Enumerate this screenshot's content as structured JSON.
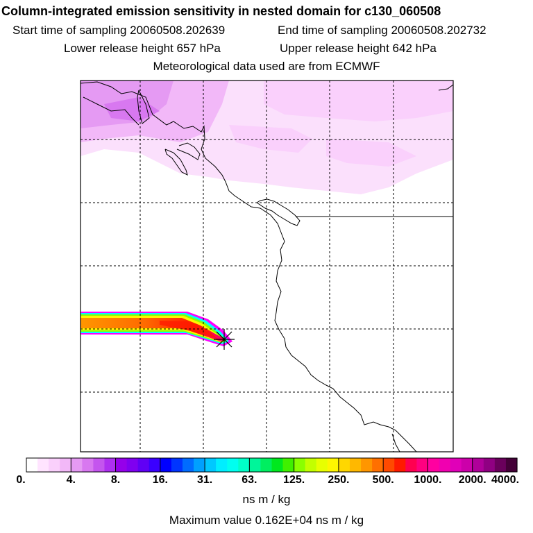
{
  "header": {
    "title": "Column-integrated emission sensitivity in nested domain for c130_060508",
    "start": "Start time of sampling 20060508.202639",
    "end": "End time of sampling 20060508.202732",
    "lower": "Lower release height  657 hPa",
    "upper": "Upper release height  642 hPa",
    "met": "Meteorological data used are from ECMWF"
  },
  "footer": {
    "units": "ns m / kg",
    "max_value": "Maximum value  0.162E+04 ns m / kg"
  },
  "chart_data": {
    "type": "heatmap",
    "title": "Column-integrated emission sensitivity in nested domain for c130_060508",
    "colorbar": {
      "scale": "log",
      "tick_labels": [
        "0.",
        "4.",
        "8.",
        "16.",
        "31.",
        "63.",
        "125.",
        "250.",
        "500.",
        "1000.",
        "2000.",
        "4000."
      ],
      "units": "ns m / kg",
      "colors": [
        "#ffffff",
        "#ffe4ff",
        "#fad0fc",
        "#f2b8f8",
        "#e59af3",
        "#d878f0",
        "#c455ee",
        "#ae2ff0",
        "#9500ea",
        "#7f00f0",
        "#6000f5",
        "#3a00ff",
        "#0000ff",
        "#0035ff",
        "#006cff",
        "#00a0ff",
        "#00c8ff",
        "#00eeff",
        "#00fff0",
        "#00ffc8",
        "#00f59a",
        "#00ee60",
        "#00e81e",
        "#40f000",
        "#8aff00",
        "#c3ff00",
        "#e8ff00",
        "#fff600",
        "#ffd700",
        "#ffb800",
        "#ff9600",
        "#ff7000",
        "#ff4a00",
        "#ff1a00",
        "#ff0050",
        "#ff0080",
        "#ff00a0",
        "#f000b0",
        "#e000b8",
        "#cc00aa",
        "#b0009a",
        "#900082",
        "#6a005c",
        "#440038"
      ]
    },
    "maximum_value": 1620,
    "release_point": "marked with star",
    "grid": true,
    "plume": "high sensitivity band extending west from release point (values 250–1000+)",
    "background": "weak sensitivity (0–8) across northern part of domain"
  }
}
